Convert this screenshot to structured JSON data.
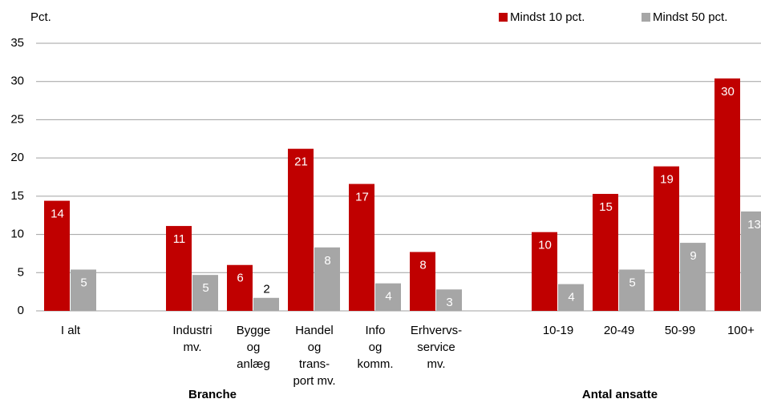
{
  "chart_data": {
    "type": "bar",
    "y_label": "Pct.",
    "categories": [
      [
        "I alt"
      ],
      null,
      [
        "Industri",
        "mv."
      ],
      [
        "Bygge",
        "og",
        "anlæg"
      ],
      [
        "Handel",
        "og",
        "trans-",
        "port mv."
      ],
      [
        "Info",
        "og",
        "komm."
      ],
      [
        "Erhvervs-",
        "service",
        "mv."
      ],
      null,
      [
        "10-19"
      ],
      [
        "20-49"
      ],
      [
        "50-99"
      ],
      [
        "100+"
      ]
    ],
    "series": [
      {
        "name": "Mindst 10 pct.",
        "color": "#c00000",
        "values": [
          14.4,
          null,
          11.1,
          6.0,
          21.2,
          16.6,
          7.7,
          null,
          10.3,
          15.3,
          18.9,
          30.4
        ],
        "value_labels": [
          "14",
          null,
          "11",
          "6",
          "21",
          "17",
          "8",
          null,
          "10",
          "15",
          "19",
          "30"
        ]
      },
      {
        "name": "Mindst 50 pct.",
        "color": "#a6a6a6",
        "values": [
          5.4,
          null,
          4.7,
          1.7,
          8.3,
          3.6,
          2.8,
          null,
          3.5,
          5.4,
          8.9,
          13.0
        ],
        "value_labels": [
          "5",
          null,
          "5",
          "2",
          "8",
          "4",
          "3",
          null,
          "4",
          "5",
          "9",
          "13"
        ]
      }
    ],
    "annotations": [
      "Branche",
      "Antal ansatte"
    ],
    "ylim": [
      0,
      35
    ],
    "yticks": [
      0,
      5,
      10,
      15,
      20,
      25,
      30,
      35
    ],
    "grid": true,
    "legend": "top-right"
  }
}
